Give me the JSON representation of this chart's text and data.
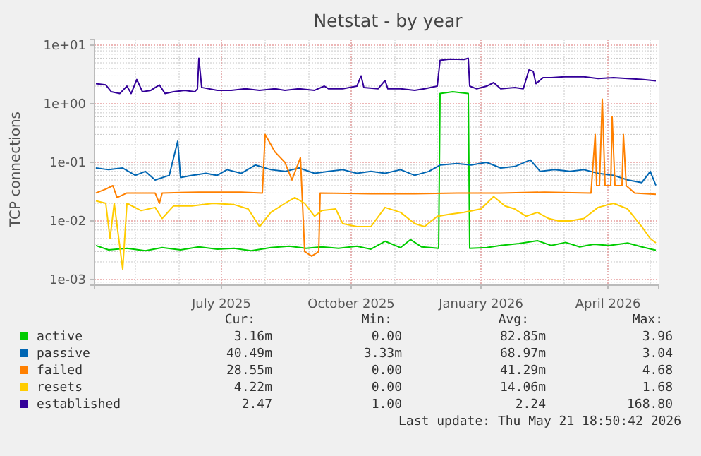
{
  "chart_data": {
    "type": "line",
    "title": "Netstat - by year",
    "ylabel": "TCP connections",
    "log": true,
    "grid": true,
    "legend": "bottom",
    "xlim": [
      "2025-04-02",
      "2026-05-07"
    ],
    "xticks": [
      {
        "value": "2025-07-01",
        "label": "July 2025"
      },
      {
        "value": "2025-10-01",
        "label": "October 2025"
      },
      {
        "value": "2026-01-01",
        "label": "January 2026"
      },
      {
        "value": "2026-04-01",
        "label": "April 2026"
      }
    ],
    "ylim": [
      0.0008,
      12.5
    ],
    "yticks": [
      {
        "value": 0.001,
        "label": "1e-03"
      },
      {
        "value": 0.01,
        "label": "1e-02"
      },
      {
        "value": 0.1,
        "label": "1e-01"
      },
      {
        "value": 1,
        "label": "1e+00"
      },
      {
        "value": 10,
        "label": "1e+01"
      }
    ],
    "annotations": [
      "Cur:",
      "Min:",
      "Avg:",
      "Max:",
      "3.16m",
      "0.00",
      "82.85m",
      "3.96",
      "40.49m",
      "3.33m",
      "68.97m",
      "3.04",
      "28.55m",
      "0.00",
      "41.29m",
      "4.68",
      "4.22m",
      "0.00",
      "14.06m",
      "1.68",
      "2.47",
      "1.00",
      "2.24",
      "168.80",
      "Last update: Thu May 21 18:50:42 2026"
    ],
    "series": [
      {
        "name": "active",
        "color": "#00cc00",
        "x": [
          "2025-04-03",
          "2025-04-12",
          "2025-04-25",
          "2025-05-08",
          "2025-05-20",
          "2025-06-02",
          "2025-06-15",
          "2025-06-28",
          "2025-07-10",
          "2025-07-22",
          "2025-08-05",
          "2025-08-18",
          "2025-08-30",
          "2025-09-10",
          "2025-09-22",
          "2025-10-05",
          "2025-10-15",
          "2025-10-25",
          "2025-11-05",
          "2025-11-12",
          "2025-11-20",
          "2025-12-02",
          "2025-12-03",
          "2025-12-12",
          "2025-12-23",
          "2025-12-24",
          "2026-01-05",
          "2026-01-15",
          "2026-01-28",
          "2026-02-10",
          "2026-02-20",
          "2026-03-02",
          "2026-03-12",
          "2026-03-22",
          "2026-04-02",
          "2026-04-15",
          "2026-04-25",
          "2026-05-05"
        ],
        "values": [
          0.0038,
          0.0032,
          0.0034,
          0.0031,
          0.0035,
          0.0032,
          0.0036,
          0.0033,
          0.0034,
          0.0031,
          0.0035,
          0.0037,
          0.0034,
          0.0036,
          0.0034,
          0.0037,
          0.0033,
          0.0045,
          0.0035,
          0.0048,
          0.0036,
          0.0034,
          1.5,
          1.6,
          1.5,
          0.0034,
          0.0035,
          0.0038,
          0.0041,
          0.0046,
          0.0038,
          0.0043,
          0.0036,
          0.004,
          0.0038,
          0.0042,
          0.0036,
          0.00316
        ]
      },
      {
        "name": "passive",
        "color": "#0066b3",
        "x": [
          "2025-04-03",
          "2025-04-12",
          "2025-04-22",
          "2025-05-01",
          "2025-05-08",
          "2025-05-15",
          "2025-05-25",
          "2025-05-31",
          "2025-06-02",
          "2025-06-10",
          "2025-06-20",
          "2025-06-28",
          "2025-07-05",
          "2025-07-15",
          "2025-07-25",
          "2025-08-05",
          "2025-08-15",
          "2025-08-25",
          "2025-09-05",
          "2025-09-15",
          "2025-09-25",
          "2025-10-05",
          "2025-10-15",
          "2025-10-25",
          "2025-11-05",
          "2025-11-15",
          "2025-11-25",
          "2025-12-03",
          "2025-12-15",
          "2025-12-25",
          "2026-01-05",
          "2026-01-15",
          "2026-01-25",
          "2026-02-05",
          "2026-02-12",
          "2026-02-22",
          "2026-03-05",
          "2026-03-15",
          "2026-03-25",
          "2026-04-05",
          "2026-04-15",
          "2026-04-25",
          "2026-05-01",
          "2026-05-05"
        ],
        "values": [
          0.08,
          0.075,
          0.08,
          0.06,
          0.07,
          0.05,
          0.06,
          0.23,
          0.055,
          0.06,
          0.065,
          0.06,
          0.075,
          0.065,
          0.09,
          0.075,
          0.07,
          0.08,
          0.065,
          0.07,
          0.075,
          0.065,
          0.07,
          0.065,
          0.075,
          0.06,
          0.07,
          0.09,
          0.095,
          0.09,
          0.1,
          0.08,
          0.085,
          0.11,
          0.07,
          0.075,
          0.07,
          0.075,
          0.065,
          0.06,
          0.05,
          0.045,
          0.07,
          0.0405
        ]
      },
      {
        "name": "failed",
        "color": "#ff8000",
        "x": [
          "2025-04-03",
          "2025-04-10",
          "2025-04-15",
          "2025-04-18",
          "2025-04-25",
          "2025-05-15",
          "2025-05-18",
          "2025-05-20",
          "2025-06-15",
          "2025-07-15",
          "2025-07-30",
          "2025-08-01",
          "2025-08-08",
          "2025-08-15",
          "2025-08-20",
          "2025-08-26",
          "2025-08-29",
          "2025-09-03",
          "2025-09-08",
          "2025-09-09",
          "2025-10-15",
          "2025-11-15",
          "2025-12-15",
          "2026-01-15",
          "2026-02-15",
          "2026-03-20",
          "2026-03-23",
          "2026-03-24",
          "2026-03-26",
          "2026-03-28",
          "2026-03-30",
          "2026-04-03",
          "2026-04-04",
          "2026-04-06",
          "2026-04-11",
          "2026-04-12",
          "2026-04-14",
          "2026-04-20",
          "2026-05-05"
        ],
        "values": [
          0.03,
          0.035,
          0.04,
          0.025,
          0.03,
          0.03,
          0.02,
          0.03,
          0.031,
          0.031,
          0.03,
          0.3,
          0.15,
          0.1,
          0.05,
          0.12,
          0.003,
          0.0025,
          0.003,
          0.03,
          0.029,
          0.029,
          0.03,
          0.03,
          0.031,
          0.03,
          0.3,
          0.04,
          0.04,
          1.2,
          0.04,
          0.04,
          0.6,
          0.04,
          0.04,
          0.3,
          0.04,
          0.03,
          0.0285
        ]
      },
      {
        "name": "resets",
        "color": "#ffcc00",
        "x": [
          "2025-04-03",
          "2025-04-10",
          "2025-04-13",
          "2025-04-16",
          "2025-04-22",
          "2025-04-25",
          "2025-05-05",
          "2025-05-15",
          "2025-05-20",
          "2025-05-28",
          "2025-06-10",
          "2025-06-25",
          "2025-07-10",
          "2025-07-20",
          "2025-07-28",
          "2025-08-05",
          "2025-08-15",
          "2025-08-22",
          "2025-08-29",
          "2025-09-05",
          "2025-09-10",
          "2025-09-20",
          "2025-09-25",
          "2025-10-05",
          "2025-10-15",
          "2025-10-25",
          "2025-11-05",
          "2025-11-15",
          "2025-11-22",
          "2025-12-01",
          "2025-12-10",
          "2025-12-20",
          "2026-01-01",
          "2026-01-10",
          "2026-01-18",
          "2026-01-25",
          "2026-02-02",
          "2026-02-10",
          "2026-02-18",
          "2026-02-25",
          "2026-03-05",
          "2026-03-15",
          "2026-03-25",
          "2026-04-05",
          "2026-04-15",
          "2026-04-25",
          "2026-05-01",
          "2026-05-05"
        ],
        "values": [
          0.022,
          0.02,
          0.005,
          0.02,
          0.0015,
          0.02,
          0.015,
          0.017,
          0.011,
          0.018,
          0.018,
          0.02,
          0.019,
          0.016,
          0.008,
          0.014,
          0.02,
          0.025,
          0.02,
          0.012,
          0.015,
          0.016,
          0.009,
          0.008,
          0.008,
          0.017,
          0.014,
          0.009,
          0.008,
          0.012,
          0.013,
          0.014,
          0.016,
          0.026,
          0.018,
          0.016,
          0.012,
          0.014,
          0.011,
          0.01,
          0.01,
          0.011,
          0.017,
          0.02,
          0.016,
          0.008,
          0.005,
          0.00422
        ]
      },
      {
        "name": "established",
        "color": "#330099",
        "x": [
          "2025-04-03",
          "2025-04-10",
          "2025-04-14",
          "2025-04-20",
          "2025-04-25",
          "2025-04-28",
          "2025-05-02",
          "2025-05-06",
          "2025-05-12",
          "2025-05-18",
          "2025-05-22",
          "2025-05-28",
          "2025-06-05",
          "2025-06-12",
          "2025-06-14",
          "2025-06-15",
          "2025-06-17",
          "2025-06-28",
          "2025-07-08",
          "2025-07-18",
          "2025-07-28",
          "2025-08-08",
          "2025-08-15",
          "2025-08-25",
          "2025-09-05",
          "2025-09-12",
          "2025-09-15",
          "2025-09-25",
          "2025-10-05",
          "2025-10-08",
          "2025-10-10",
          "2025-10-20",
          "2025-10-25",
          "2025-10-27",
          "2025-11-05",
          "2025-11-15",
          "2025-11-22",
          "2025-12-01",
          "2025-12-03",
          "2025-12-10",
          "2025-12-20",
          "2025-12-23",
          "2025-12-24",
          "2025-12-29",
          "2026-01-05",
          "2026-01-10",
          "2026-01-15",
          "2026-01-25",
          "2026-01-31",
          "2026-02-04",
          "2026-02-07",
          "2026-02-09",
          "2026-02-14",
          "2026-02-20",
          "2026-03-01",
          "2026-03-15",
          "2026-03-25",
          "2026-04-05",
          "2026-04-15",
          "2026-04-25",
          "2026-05-05"
        ],
        "values": [
          2.2,
          2.1,
          1.6,
          1.5,
          2.0,
          1.5,
          2.6,
          1.6,
          1.7,
          2.1,
          1.5,
          1.6,
          1.7,
          1.6,
          1.8,
          6.0,
          1.9,
          1.7,
          1.7,
          1.8,
          1.7,
          1.8,
          1.7,
          1.8,
          1.7,
          2.0,
          1.8,
          1.8,
          2.0,
          3.0,
          1.9,
          1.8,
          2.5,
          1.8,
          1.8,
          1.7,
          1.8,
          2.0,
          5.5,
          5.8,
          5.7,
          6.0,
          2.0,
          1.8,
          2.0,
          2.3,
          1.8,
          1.9,
          1.8,
          3.8,
          3.6,
          2.2,
          2.8,
          2.8,
          2.9,
          2.9,
          2.7,
          2.8,
          2.7,
          2.6,
          2.47
        ]
      }
    ]
  }
}
